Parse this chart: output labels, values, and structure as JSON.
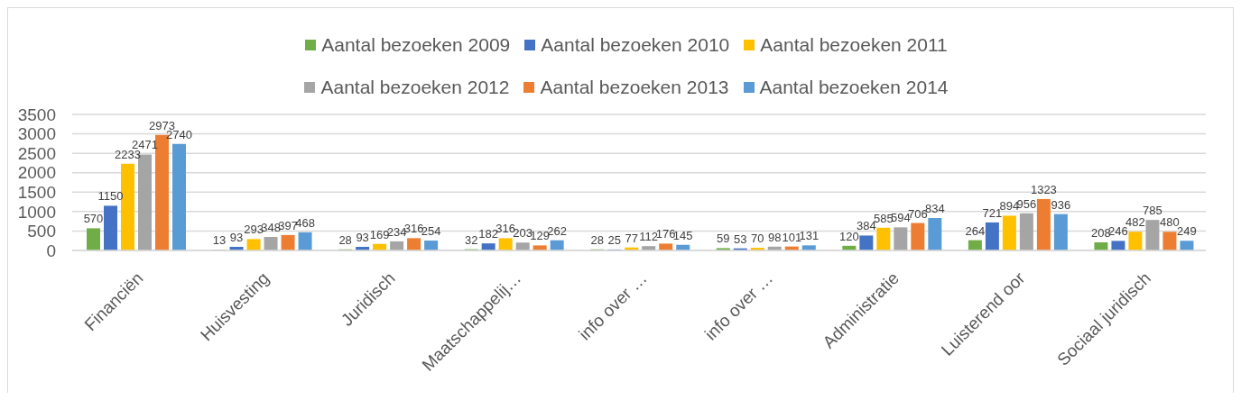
{
  "chart_data": {
    "type": "bar",
    "categories": [
      "Financiën",
      "Huisvesting",
      "Juridisch",
      "Maatschappelij…",
      "info over …",
      "info over …",
      "Administratie",
      "Luisterend oor",
      "Sociaal juridisch"
    ],
    "series": [
      {
        "name": "Aantal bezoeken 2009",
        "color": "#70ad47",
        "values": [
          570,
          13,
          28,
          32,
          28,
          59,
          120,
          264,
          208
        ]
      },
      {
        "name": "Aantal bezoeken 2010",
        "color": "#4472c4",
        "values": [
          1150,
          93,
          93,
          182,
          25,
          53,
          384,
          721,
          246
        ]
      },
      {
        "name": "Aantal bezoeken 2011",
        "color": "#ffc000",
        "values": [
          2233,
          293,
          169,
          316,
          77,
          70,
          585,
          894,
          482
        ]
      },
      {
        "name": "Aantal bezoeken 2012",
        "color": "#a5a5a5",
        "values": [
          2471,
          348,
          234,
          203,
          112,
          98,
          594,
          956,
          785
        ]
      },
      {
        "name": "Aantal bezoeken 2013",
        "color": "#ed7d31",
        "values": [
          2973,
          397,
          316,
          129,
          176,
          101,
          706,
          1323,
          480
        ]
      },
      {
        "name": "Aantal bezoeken 2014",
        "color": "#5b9bd5",
        "values": [
          2740,
          468,
          254,
          262,
          145,
          131,
          834,
          936,
          249
        ]
      }
    ],
    "ylim": [
      0,
      3500
    ],
    "yticks": [
      0,
      500,
      1000,
      1500,
      2000,
      2500,
      3000,
      3500
    ],
    "grid": "y",
    "legend": "top",
    "data_labels": true
  }
}
